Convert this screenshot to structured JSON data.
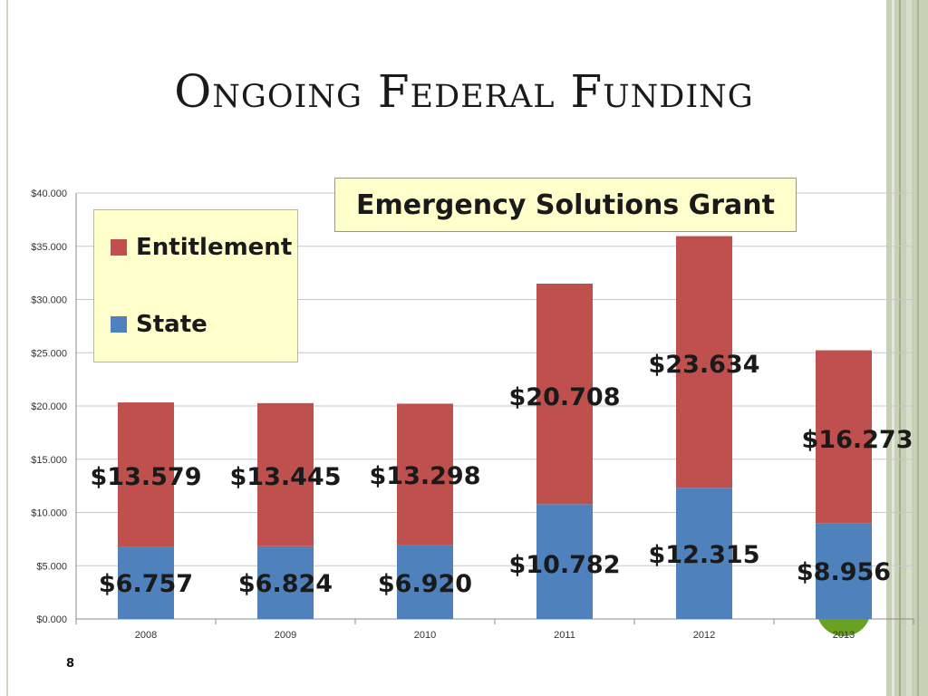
{
  "slide": {
    "title": "Ongoing Federal Funding",
    "page_number": "8"
  },
  "colors": {
    "entitlement": "#c0504d",
    "state": "#4f81bd",
    "grid": "#c8c8c8",
    "title_box_bg": "#ffffcc",
    "green_marker": "#6aa121"
  },
  "chart_data": {
    "type": "bar",
    "stacked": true,
    "title": "Emergency Solutions Grant",
    "categories": [
      "2008",
      "2009",
      "2010",
      "2011",
      "2012",
      "2013"
    ],
    "series": [
      {
        "name": "State",
        "values": [
          6.757,
          6.824,
          6.92,
          10.782,
          12.315,
          8.956
        ],
        "labels": [
          "$6.757",
          "$6.824",
          "$6.920",
          "$10.782",
          "$12.315",
          "$8.956"
        ]
      },
      {
        "name": "Entitlement",
        "values": [
          13.579,
          13.445,
          13.298,
          20.708,
          23.634,
          16.273
        ],
        "labels": [
          "$13.579",
          "$13.445",
          "$13.298",
          "$20.708",
          "$23.634",
          "$16.273"
        ]
      }
    ],
    "ylim": [
      0,
      40
    ],
    "yticks": [
      0,
      5,
      10,
      15,
      20,
      25,
      30,
      35,
      40
    ],
    "ytick_labels": [
      "$0.000",
      "$5.000",
      "$10.000",
      "$15.000",
      "$20.000",
      "$25.000",
      "$30.000",
      "$35.000",
      "$40.000"
    ],
    "legend": {
      "position": "top-left",
      "entries": [
        "Entitlement",
        "State"
      ]
    },
    "grid": true
  }
}
